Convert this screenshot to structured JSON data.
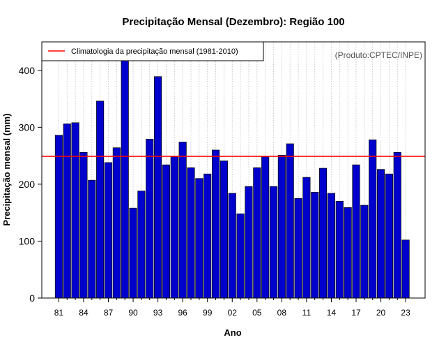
{
  "chart_data": {
    "type": "bar",
    "title": "Precipitação Mensal (Dezembro): Região 100",
    "xlabel": "Ano",
    "ylabel": "Precipitação mensal (mm)",
    "ylim": [
      0,
      450
    ],
    "yticks": [
      0,
      100,
      200,
      300,
      400
    ],
    "grid": "vertical dotted at each year",
    "source_note": "(Produto:CPTEC/INPE)",
    "years": [
      1981,
      1982,
      1983,
      1984,
      1985,
      1986,
      1987,
      1988,
      1989,
      1990,
      1991,
      1992,
      1993,
      1994,
      1995,
      1996,
      1997,
      1998,
      1999,
      2000,
      2001,
      2002,
      2003,
      2004,
      2005,
      2006,
      2007,
      2008,
      2009,
      2010,
      2011,
      2012,
      2013,
      2014,
      2015,
      2016,
      2017,
      2018,
      2019,
      2020,
      2021,
      2022,
      2023
    ],
    "categories": [
      "81",
      "82",
      "83",
      "84",
      "85",
      "86",
      "87",
      "88",
      "89",
      "90",
      "91",
      "92",
      "93",
      "94",
      "95",
      "96",
      "97",
      "98",
      "99",
      "00",
      "01",
      "02",
      "03",
      "04",
      "05",
      "06",
      "07",
      "08",
      "09",
      "10",
      "11",
      "12",
      "13",
      "14",
      "15",
      "16",
      "17",
      "18",
      "19",
      "20",
      "21",
      "22",
      "23"
    ],
    "xtick_labels": [
      "81",
      "84",
      "87",
      "90",
      "93",
      "96",
      "99",
      "02",
      "05",
      "08",
      "11",
      "14",
      "17",
      "20",
      "23"
    ],
    "values": [
      286,
      306,
      308,
      256,
      207,
      346,
      238,
      264,
      428,
      158,
      188,
      279,
      389,
      234,
      248,
      274,
      229,
      210,
      218,
      260,
      241,
      184,
      148,
      196,
      229,
      248,
      196,
      251,
      271,
      175,
      212,
      186,
      228,
      184,
      170,
      159,
      234,
      163,
      278,
      226,
      218,
      256,
      102
    ],
    "series": [
      {
        "name": "Precipitação mensal",
        "color": "#0000cc",
        "edge": "#000000"
      }
    ],
    "reference_line": {
      "label": "Climatologia da precipitação mensal (1981-2010)",
      "value": 249,
      "color": "#ff0000"
    },
    "legend_position": "top-left"
  }
}
